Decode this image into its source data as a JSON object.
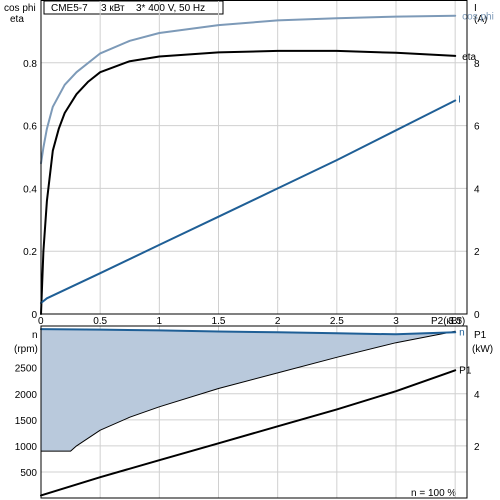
{
  "header": {
    "model": "CME5-7",
    "power": "3 кВт",
    "supply": "3* 400 V, 50 Hz"
  },
  "top_axes": {
    "left_labels": [
      "cos phi",
      "eta"
    ],
    "right_labels": [
      "I",
      "(A)"
    ],
    "x_unit_label": "P2(кВт)"
  },
  "bottom_axes": {
    "left_labels": [
      "n",
      "(rpm)"
    ],
    "right_labels": [
      "P1",
      "(kW)"
    ],
    "footer": "n   = 100 %"
  },
  "colors": {
    "frame": "#000000",
    "grid": "#d0d0d0",
    "cosphi": "#7d9ab8",
    "eta": "#000000",
    "current": "#1f5f96",
    "speed_line": "#1f5f96",
    "speed_fill": "#b9c9dc",
    "speed_fill_edge": "#000000",
    "p1": "#000000"
  },
  "chart_data": [
    {
      "type": "line",
      "panel": "efficiency-and-current",
      "x_ticks": [
        0,
        0.5,
        1,
        1.5,
        2,
        2.5,
        3,
        3.5
      ],
      "x_tick_labels": [
        "0",
        "0.5",
        "1",
        "1.5",
        "2",
        "2.5",
        "3",
        "3.5"
      ],
      "xlim": [
        0,
        3.6
      ],
      "left_ylim": [
        0,
        1.0
      ],
      "left_ticks": [
        0,
        0.2,
        0.4,
        0.6,
        0.8
      ],
      "left_tick_labels": [
        "0",
        "0.2",
        "0.4",
        "0.6",
        "0.8"
      ],
      "right_ylim": [
        0,
        10
      ],
      "right_ticks": [
        0,
        2,
        4,
        6,
        8
      ],
      "right_tick_labels": [
        "0",
        "2",
        "4",
        "6",
        "8"
      ],
      "grid": true,
      "series": [
        {
          "name": "cos phi",
          "axis": "left",
          "x": [
            0,
            0.02,
            0.05,
            0.1,
            0.2,
            0.3,
            0.5,
            0.75,
            1.0,
            1.5,
            2.0,
            2.5,
            3.0,
            3.5
          ],
          "y": [
            0.48,
            0.53,
            0.59,
            0.66,
            0.73,
            0.77,
            0.83,
            0.87,
            0.895,
            0.92,
            0.935,
            0.942,
            0.947,
            0.95
          ]
        },
        {
          "name": "eta",
          "axis": "left",
          "x": [
            0,
            0.02,
            0.05,
            0.1,
            0.15,
            0.2,
            0.3,
            0.4,
            0.5,
            0.75,
            1.0,
            1.5,
            2.0,
            2.5,
            3.0,
            3.5
          ],
          "y": [
            0.0,
            0.2,
            0.36,
            0.52,
            0.59,
            0.64,
            0.7,
            0.74,
            0.77,
            0.805,
            0.82,
            0.833,
            0.838,
            0.838,
            0.832,
            0.822
          ]
        },
        {
          "name": "I",
          "axis": "right",
          "x": [
            0,
            0.05,
            0.5,
            1.0,
            1.5,
            2.0,
            2.5,
            3.0,
            3.5
          ],
          "y": [
            0.35,
            0.5,
            1.3,
            2.2,
            3.1,
            4.0,
            4.9,
            5.85,
            6.8
          ]
        }
      ]
    },
    {
      "type": "area",
      "panel": "speed-and-power",
      "xlim": [
        0,
        3.6
      ],
      "left_ylim": [
        0,
        3300
      ],
      "left_ticks": [
        500,
        1000,
        1500,
        2000,
        2500
      ],
      "left_tick_labels": [
        "500",
        "1000",
        "1500",
        "2000",
        "2500"
      ],
      "right_ylim": [
        0,
        6.6
      ],
      "right_ticks": [
        2,
        4
      ],
      "right_tick_labels": [
        "2",
        "4"
      ],
      "grid": true,
      "series": [
        {
          "name": "n",
          "axis": "left",
          "x": [
            0,
            0.5,
            1.0,
            1.5,
            2.0,
            2.5,
            3.0,
            3.5
          ],
          "y": [
            3240,
            3230,
            3215,
            3195,
            3180,
            3160,
            3140,
            3180
          ]
        },
        {
          "name": "min",
          "axis": "left",
          "x": [
            0,
            0.25,
            0.3,
            0.5,
            0.75,
            1.0,
            1.5,
            2.0,
            2.5,
            3.0,
            3.5
          ],
          "y": [
            900,
            900,
            1000,
            1300,
            1550,
            1750,
            2100,
            2400,
            2700,
            2980,
            3200
          ]
        },
        {
          "name": "P1",
          "axis": "right",
          "x": [
            0,
            0.5,
            1.0,
            1.5,
            2.0,
            2.5,
            3.0,
            3.5
          ],
          "y": [
            0.1,
            0.8,
            1.45,
            2.1,
            2.75,
            3.4,
            4.1,
            4.9
          ]
        }
      ]
    }
  ]
}
